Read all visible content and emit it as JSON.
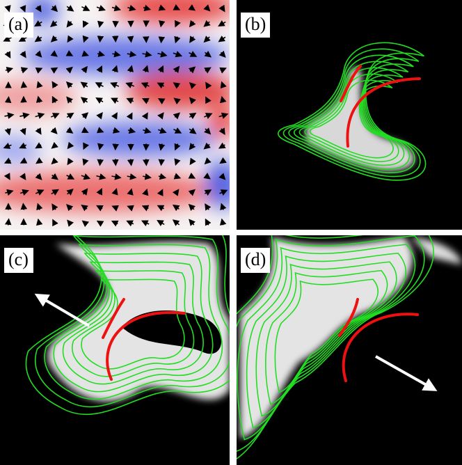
{
  "panels": [
    {
      "label": "(a)"
    },
    {
      "label": "(b)"
    },
    {
      "label": "(c)"
    },
    {
      "label": "(d)"
    }
  ]
}
